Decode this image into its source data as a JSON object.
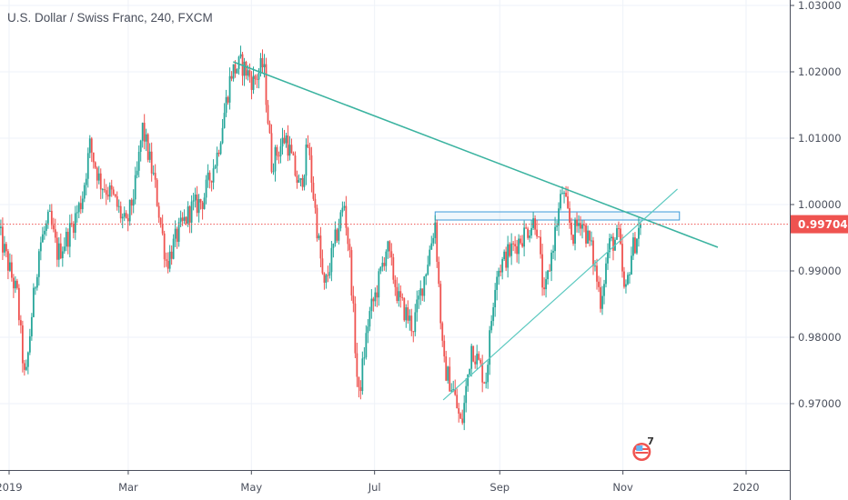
{
  "title": "U.S. Dollar / Swiss Franc, 240, FXCM",
  "chart_data": {
    "type": "candlestick",
    "symbol": "USDCHF",
    "interval": "240",
    "source": "FXCM",
    "ylim": [
      0.9625,
      1.0308
    ],
    "xlim": [
      "2018-12-27",
      "2020-02-20"
    ],
    "y_ticks": [
      "1.03000",
      "1.02000",
      "1.01000",
      "1.00000",
      "0.99000",
      "0.98000",
      "0.97000"
    ],
    "x_ticks": [
      {
        "label": "2019",
        "date": "2019-01-01"
      },
      {
        "label": "Mar",
        "date": "2019-03-01"
      },
      {
        "label": "May",
        "date": "2019-05-01"
      },
      {
        "label": "Jul",
        "date": "2019-07-01"
      },
      {
        "label": "Sep",
        "date": "2019-09-01"
      },
      {
        "label": "Nov",
        "date": "2019-11-01"
      },
      {
        "label": "2020",
        "date": "2020-01-01"
      }
    ],
    "grid": true,
    "last_price": 0.99704,
    "last_price_label": "0.99704",
    "approx_close_path": [
      [
        "2018-12-27",
        0.9959
      ],
      [
        "2019-01-01",
        0.9904
      ],
      [
        "2019-01-05",
        0.9863
      ],
      [
        "2019-01-09",
        0.9726
      ],
      [
        "2019-01-12",
        0.9829
      ],
      [
        "2019-01-16",
        0.9938
      ],
      [
        "2019-01-21",
        0.9979
      ],
      [
        "2019-01-25",
        0.9925
      ],
      [
        "2019-01-30",
        0.9952
      ],
      [
        "2019-02-06",
        1.0007
      ],
      [
        "2019-02-10",
        1.0089
      ],
      [
        "2019-02-15",
        1.0034
      ],
      [
        "2019-02-21",
        1.0014
      ],
      [
        "2019-02-28",
        0.9966
      ],
      [
        "2019-03-05",
        1.0034
      ],
      [
        "2019-03-08",
        1.0116
      ],
      [
        "2019-03-14",
        1.0034
      ],
      [
        "2019-03-20",
        0.9911
      ],
      [
        "2019-03-25",
        0.9952
      ],
      [
        "2019-04-01",
        0.9993
      ],
      [
        "2019-04-07",
        1.0007
      ],
      [
        "2019-04-14",
        1.0075
      ],
      [
        "2019-04-21",
        1.0199
      ],
      [
        "2019-04-26",
        1.0212
      ],
      [
        "2019-05-02",
        1.0185
      ],
      [
        "2019-05-07",
        1.0212
      ],
      [
        "2019-05-11",
        1.0062
      ],
      [
        "2019-05-18",
        1.0103
      ],
      [
        "2019-05-25",
        1.0021
      ],
      [
        "2019-05-29",
        1.0089
      ],
      [
        "2019-06-03",
        0.9952
      ],
      [
        "2019-06-06",
        0.987
      ],
      [
        "2019-06-14",
        0.9979
      ],
      [
        "2019-06-16",
        1.0
      ],
      [
        "2019-06-19",
        0.9911
      ],
      [
        "2019-06-23",
        0.9705
      ],
      [
        "2019-06-28",
        0.9829
      ],
      [
        "2019-07-02",
        0.987
      ],
      [
        "2019-07-07",
        0.9938
      ],
      [
        "2019-07-13",
        0.9856
      ],
      [
        "2019-07-20",
        0.9815
      ],
      [
        "2019-07-27",
        0.9911
      ],
      [
        "2019-07-31",
        0.9973
      ],
      [
        "2019-08-04",
        0.976
      ],
      [
        "2019-08-09",
        0.9719
      ],
      [
        "2019-08-13",
        0.9664
      ],
      [
        "2019-08-18",
        0.9788
      ],
      [
        "2019-08-25",
        0.9733
      ],
      [
        "2019-08-30",
        0.9897
      ],
      [
        "2019-09-05",
        0.9925
      ],
      [
        "2019-09-12",
        0.9952
      ],
      [
        "2019-09-19",
        0.9979
      ],
      [
        "2019-09-23",
        0.9856
      ],
      [
        "2019-09-28",
        0.9952
      ],
      [
        "2019-10-02",
        1.0021
      ],
      [
        "2019-10-07",
        0.9952
      ],
      [
        "2019-10-11",
        0.9979
      ],
      [
        "2019-10-16",
        0.9938
      ],
      [
        "2019-10-21",
        0.9856
      ],
      [
        "2019-10-25",
        0.9938
      ],
      [
        "2019-10-30",
        0.9952
      ],
      [
        "2019-11-02",
        0.9856
      ],
      [
        "2019-11-05",
        0.9925
      ],
      [
        "2019-11-10",
        0.9973
      ]
    ],
    "drawings": {
      "descending_trendline": [
        [
          "2019-04-22",
          1.0215
        ],
        [
          "2019-12-18",
          0.99356
        ]
      ],
      "rising_trendline": [
        [
          "2019-08-04",
          0.97055
        ],
        [
          "2019-11-28",
          1.00233
        ]
      ],
      "resistance_rectangle": {
        "from": "2019-07-31",
        "to": "2019-11-29",
        "top": 0.9989,
        "bottom": 0.99767
      }
    },
    "event_marker": {
      "icon": "us-flag-event-icon",
      "count": "7",
      "date": "2019-11-04"
    }
  },
  "colors": {
    "up": "#26a69a",
    "down": "#ef5350",
    "descending_trendline": "#3bb3a0",
    "rising_trendline": "#5cc9c0",
    "rectangle": "#3d9ad9",
    "last_price": "#ef5350",
    "grid": "#eef2f8",
    "axis": "#4a4f5c"
  }
}
